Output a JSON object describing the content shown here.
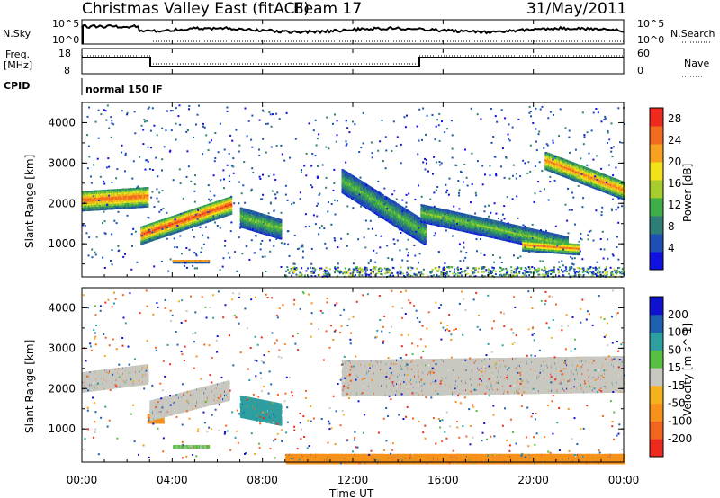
{
  "header": {
    "station": "Christmas Valley East (fitACF)",
    "beam": "Beam 17",
    "date": "31/May/2011"
  },
  "status_panels": {
    "nsky_label": "N.Sky",
    "nsky_ticks": [
      "10^5",
      "10^0"
    ],
    "nsearch_label": "N.Search",
    "nsearch_ticks": [
      "10^5",
      "10^0"
    ],
    "freq_label_lines": [
      "Freq.",
      "[MHz]"
    ],
    "freq_ticks": [
      "18",
      "8"
    ],
    "nave_label": "Nave",
    "nave_ticks": [
      "60",
      "0"
    ],
    "cpid_label": "CPID",
    "cpid_value": "normal 150 IF"
  },
  "axes": {
    "ylabel": "Slant Range [km]",
    "xlabel": "Time UT",
    "y_ticks": [
      "1000",
      "2000",
      "3000",
      "4000"
    ],
    "x_ticks": [
      "00:00",
      "04:00",
      "08:00",
      "12:00",
      "16:00",
      "20:00",
      "00:00"
    ]
  },
  "colorbars": {
    "power_label": "Power [dB]",
    "power_ticks": [
      "4",
      "8",
      "12",
      "16",
      "20",
      "24",
      "28"
    ],
    "power_colors": [
      "#1010e0",
      "#1e4fb4",
      "#2f7d77",
      "#3fae4a",
      "#a6cd2c",
      "#f2e21a",
      "#f6a11f",
      "#f36b21",
      "#ee2a1f"
    ],
    "velocity_label": "Velocity [m s^-1]",
    "velocity_ticks": [
      "200",
      "100",
      "50",
      "15",
      "-15",
      "-50",
      "-100",
      "-200"
    ],
    "velocity_colors": [
      "#1010d0",
      "#1e5fb0",
      "#2e9fa0",
      "#57c040",
      "#c8c8c0",
      "#f6b21a",
      "#f6921c",
      "#f26420",
      "#ee2a1f"
    ]
  },
  "chart_data": [
    {
      "type": "heatmap",
      "title": "Power",
      "ylabel": "Slant Range [km]",
      "xlabel": "Time UT",
      "xlim": [
        0,
        24
      ],
      "ylim": [
        180,
        4500
      ],
      "colorbar_label": "Power [dB]",
      "colorbar_range": [
        0,
        30
      ],
      "features": [
        {
          "t0": 0.0,
          "t1": 2.9,
          "r_center_start": 2100,
          "r_center_end": 2200,
          "r_width": 500,
          "peak_value": 26
        },
        {
          "t0": 2.6,
          "t1": 6.6,
          "r_center_start": 1250,
          "r_center_end": 2000,
          "r_width": 450,
          "peak_value": 27
        },
        {
          "t0": 4.0,
          "t1": 5.6,
          "r_center_start": 600,
          "r_center_end": 600,
          "r_width": 80,
          "peak_value": 22
        },
        {
          "t0": 7.0,
          "t1": 8.8,
          "r_center_start": 1700,
          "r_center_end": 1400,
          "r_width": 500,
          "peak_value": 14
        },
        {
          "t0": 11.5,
          "t1": 15.2,
          "r_center_start": 2600,
          "r_center_end": 1300,
          "r_width": 600,
          "peak_value": 13
        },
        {
          "t0": 15.0,
          "t1": 21.5,
          "r_center_start": 1800,
          "r_center_end": 1000,
          "r_width": 450,
          "peak_value": 14
        },
        {
          "t0": 19.5,
          "t1": 22.0,
          "r_center_start": 1000,
          "r_center_end": 900,
          "r_width": 280,
          "peak_value": 24
        },
        {
          "t0": 20.5,
          "t1": 24.0,
          "r_center_start": 3100,
          "r_center_end": 2350,
          "r_width": 450,
          "peak_value": 24
        }
      ]
    },
    {
      "type": "heatmap",
      "title": "Velocity",
      "ylabel": "Slant Range [km]",
      "xlabel": "Time UT",
      "xlim": [
        0,
        24
      ],
      "ylim": [
        180,
        4500
      ],
      "colorbar_label": "Velocity [m s^-1]",
      "colorbar_range": [
        -200,
        200
      ],
      "features": [
        {
          "t0": 0.0,
          "t1": 2.9,
          "r_center_start": 2200,
          "r_center_end": 2400,
          "r_width": 500,
          "value": 0
        },
        {
          "t0": 2.9,
          "t1": 3.6,
          "r_center_start": 1300,
          "r_center_end": 1300,
          "r_width": 250,
          "value": -60
        },
        {
          "t0": 3.0,
          "t1": 6.5,
          "r_center_start": 1500,
          "r_center_end": 2000,
          "r_width": 500,
          "value": 0
        },
        {
          "t0": 4.0,
          "t1": 5.6,
          "r_center_start": 600,
          "r_center_end": 600,
          "r_width": 80,
          "value": 20
        },
        {
          "t0": 7.0,
          "t1": 8.8,
          "r_center_start": 1600,
          "r_center_end": 1400,
          "r_width": 550,
          "value": 50
        },
        {
          "t0": 11.5,
          "t1": 24.0,
          "r_center_start": 2300,
          "r_center_end": 2400,
          "r_width": 900,
          "value": 0
        },
        {
          "t0": 9.0,
          "t1": 24.0,
          "r_center_start": 300,
          "r_center_end": 300,
          "r_width": 250,
          "value": -60
        }
      ]
    }
  ]
}
